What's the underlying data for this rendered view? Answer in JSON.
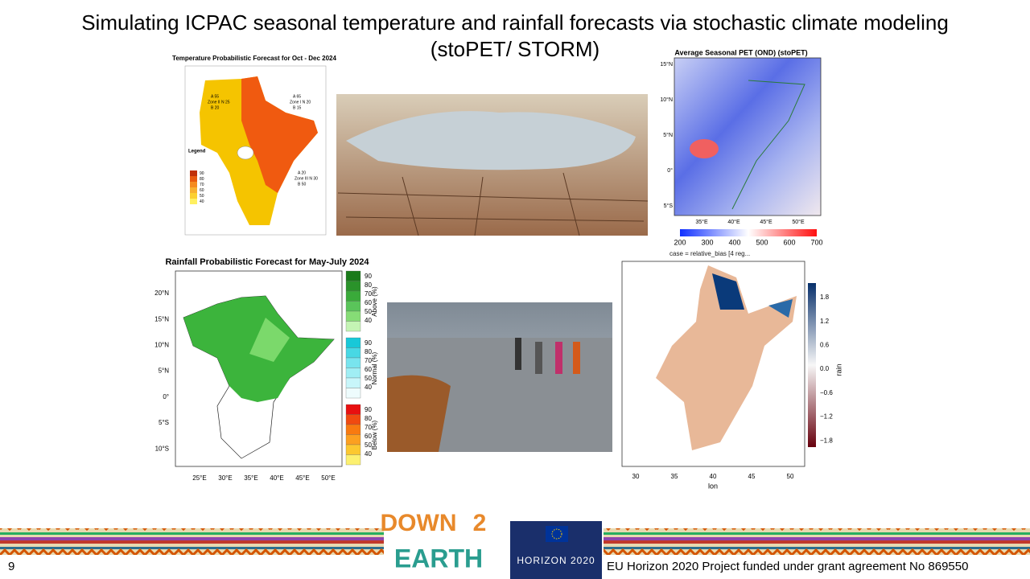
{
  "slide": {
    "title_lines": [
      "Simulating ICPAC seasonal temperature and rainfall forecasts via stochastic climate modeling",
      "(stoPET/ STORM)"
    ],
    "page_number": "9",
    "footer": "EU Horizon 2020 Project funded under grant agreement No 869550"
  },
  "temperature_map": {
    "title": "Temperature Probabilistic Forecast for Oct - Dec 2024",
    "zones": [
      "A 55",
      "Zone II N 25",
      "B 20",
      "A 65",
      "Zone I N 20",
      "B 15",
      "A 20",
      "Zone III N 30",
      "B 50"
    ],
    "legend_title": "Legend",
    "legend_values": [
      "90",
      "80",
      "70",
      "60",
      "50",
      "40"
    ]
  },
  "pet_map": {
    "title": "Average Seasonal PET (OND) (stoPET)",
    "lat_labels": [
      "15°N",
      "10°N",
      "5°N",
      "0°",
      "5°S"
    ],
    "lon_labels": [
      "35°E",
      "40°E",
      "45°E",
      "50°E"
    ],
    "colorbar_ticks": [
      "200",
      "300",
      "400",
      "500",
      "600",
      "700"
    ]
  },
  "rainfall_map": {
    "title": "Rainfall Probabilistic Forecast for May-July 2024",
    "lat_labels": [
      "20°N",
      "15°N",
      "10°N",
      "5°N",
      "0°",
      "5°S",
      "10°S"
    ],
    "lon_labels": [
      "25°E",
      "30°E",
      "35°E",
      "40°E",
      "45°E",
      "50°E"
    ],
    "legend_groups": [
      "Above (%)",
      "Normal (%)",
      "Below (%)"
    ],
    "legend_values": [
      "90",
      "80",
      "70",
      "60",
      "50",
      "40"
    ]
  },
  "bias_map": {
    "title": "case = relative_bias [4 reg...",
    "colorbar_label": "rain",
    "colorbar_ticks": [
      "1.8",
      "1.2",
      "0.6",
      "0.0",
      "−0.6",
      "−1.2",
      "−1.8"
    ],
    "x_label": "lon",
    "x_ticks": [
      "30",
      "35",
      "40",
      "45",
      "50"
    ]
  },
  "logos": {
    "down2earth": [
      "DOWN",
      "2",
      "EARTH"
    ],
    "horizon": "HORIZON 2020"
  }
}
